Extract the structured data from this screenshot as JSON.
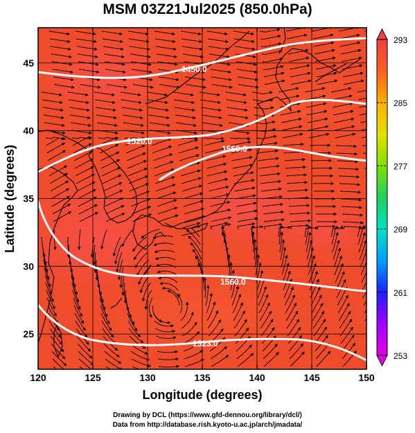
{
  "title": "MSM 03Z21Jul2025 (850.0hPa)",
  "axes": {
    "xlabel": "Longitude (degrees)",
    "ylabel": "Latitude  (degrees)",
    "xlim": [
      120,
      150
    ],
    "ylim": [
      22.4,
      47.6
    ],
    "xticks": [
      "120",
      "125",
      "130",
      "135",
      "140",
      "145",
      "150"
    ],
    "yticks": [
      "25",
      "30",
      "35",
      "40",
      "45"
    ]
  },
  "colorbar": {
    "ticks": [
      "293",
      "285",
      "277",
      "269",
      "261",
      "253"
    ],
    "min": 253,
    "max": 293,
    "colors": [
      "#e000e0",
      "#a000ff",
      "#2020ff",
      "#00a0ff",
      "#00e0c0",
      "#20d060",
      "#80e000",
      "#e0e000",
      "#ffb000",
      "#ff6020",
      "#f04040"
    ]
  },
  "contours": {
    "labels": [
      "1450.0",
      "1520.0",
      "1550.0",
      "1560.0",
      "1523.0"
    ]
  },
  "map": {
    "background_color": "#f04a2a",
    "vector_style": "streamlines with arrows"
  },
  "credits": {
    "line1": "Drawing by DCL (https://www.gfd-dennou.org/library/dcl/)",
    "line2": "Data from http://database.rish.kyoto-u.ac.jp/arch/jmadata/"
  }
}
